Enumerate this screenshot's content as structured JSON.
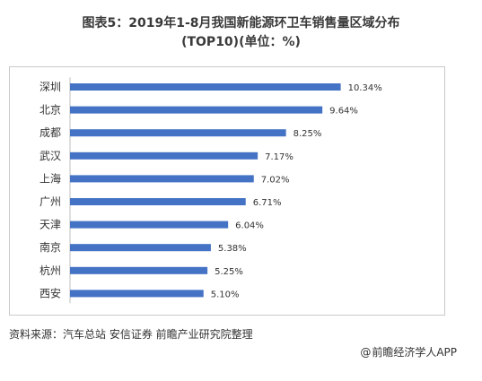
{
  "title_line1": "图表5：2019年1-8月我国新能源环卫车销售量区域分布",
  "title_line2": "(TOP10)(单位：%)",
  "source": "资料来源：汽车总站 安信证券 前瞻产业研究院整理",
  "brand": {
    "text": "前瞻经济学人APP",
    "icon": "at-sign-icon",
    "glyph": "@"
  },
  "colors": {
    "bar": "#4472c4",
    "frame": "#c9c9c9",
    "text": "#333333"
  },
  "chart_data": {
    "type": "bar",
    "orientation": "horizontal",
    "categories": [
      "深圳",
      "北京",
      "成都",
      "武汉",
      "上海",
      "广州",
      "天津",
      "南京",
      "杭州",
      "西安"
    ],
    "values": [
      10.34,
      9.64,
      8.25,
      7.17,
      7.02,
      6.71,
      6.04,
      5.38,
      5.25,
      5.1
    ],
    "data_labels": [
      "10.34%",
      "9.64%",
      "8.25%",
      "7.17%",
      "7.02%",
      "6.71%",
      "6.04%",
      "5.38%",
      "5.25%",
      "5.10%"
    ],
    "xlim": [
      0,
      12
    ],
    "grid": false,
    "legend": "none"
  }
}
